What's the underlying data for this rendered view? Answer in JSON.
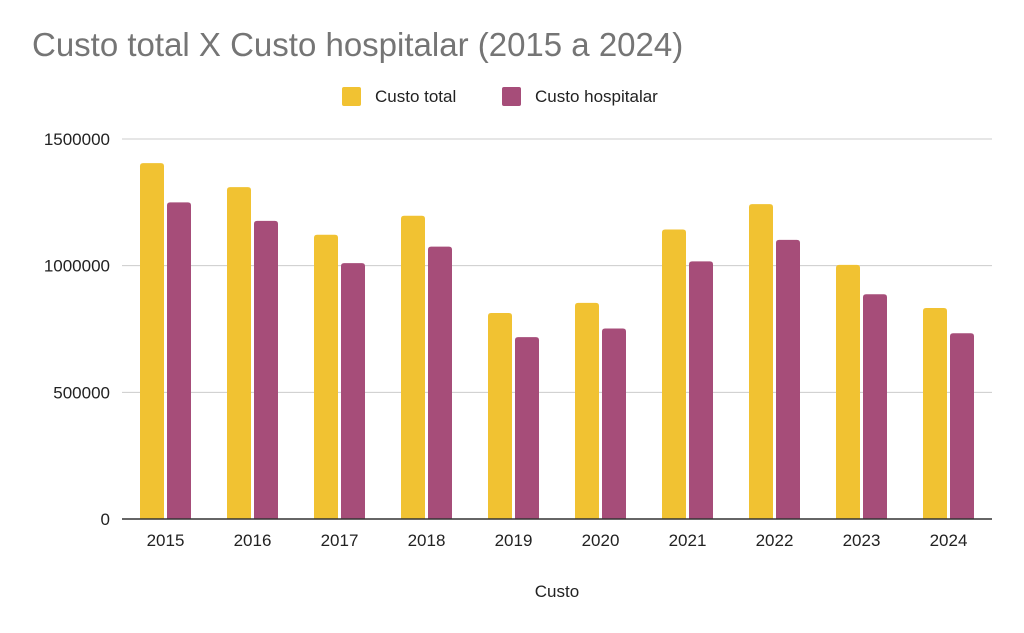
{
  "chart_data": {
    "type": "bar",
    "title": "Custo total X Custo hospitalar (2015 a 2024)",
    "xlabel": "Custo",
    "ylabel": "",
    "categories": [
      "2015",
      "2016",
      "2017",
      "2018",
      "2019",
      "2020",
      "2021",
      "2022",
      "2023",
      "2024"
    ],
    "series": [
      {
        "name": "Custo total",
        "color": "#f1c232",
        "values": [
          1405000,
          1310000,
          1122000,
          1197000,
          813000,
          853000,
          1143000,
          1243000,
          1003000,
          833000
        ]
      },
      {
        "name": "Custo hospitalar",
        "color": "#a64d79",
        "values": [
          1250000,
          1177000,
          1010000,
          1075000,
          718000,
          752000,
          1017000,
          1102000,
          887000,
          733000
        ]
      }
    ],
    "ylim": [
      0,
      1500000
    ],
    "yticks": [
      "0",
      "500000",
      "1000000",
      "1500000"
    ],
    "grid": true,
    "legend_position": "top-center"
  }
}
